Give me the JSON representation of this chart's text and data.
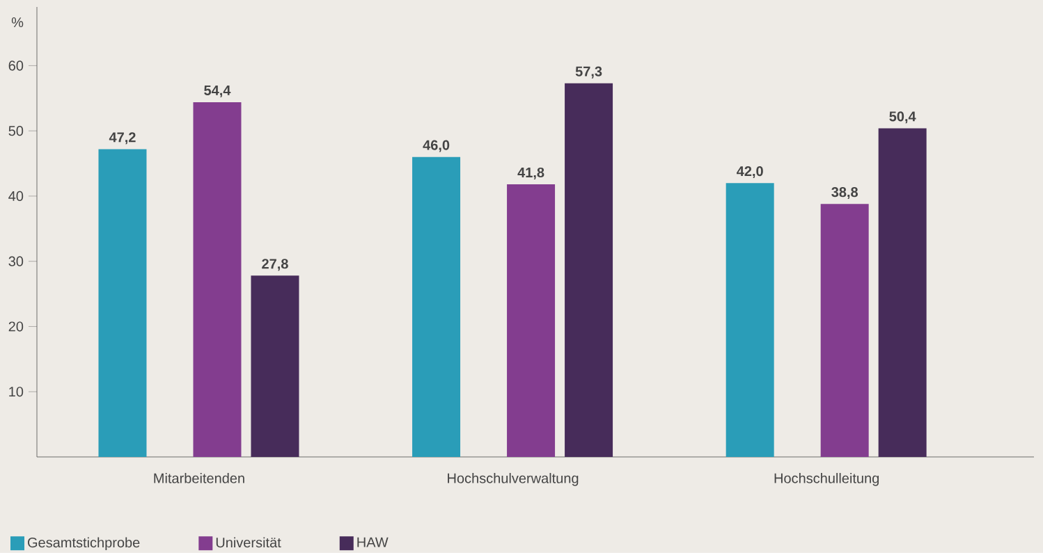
{
  "chart_data": {
    "type": "bar",
    "ylabel": "%",
    "categories": [
      "Mitarbeitenden",
      "Hochschulverwaltung",
      "Hochschulleitung"
    ],
    "series": [
      {
        "name": "Gesamtstichprobe",
        "color": "#2a9db8",
        "values": [
          47.2,
          46.0,
          42.0
        ],
        "value_labels": [
          "47,2",
          "46,0",
          "42,0"
        ]
      },
      {
        "name": "Universität",
        "color": "#833d8f",
        "values": [
          54.4,
          41.8,
          38.8
        ],
        "value_labels": [
          "54,4",
          "41,8",
          "38,8"
        ]
      },
      {
        "name": "HAW",
        "color": "#472c5a",
        "values": [
          27.8,
          57.3,
          50.4
        ],
        "value_labels": [
          "27,8",
          "57,3",
          "50,4"
        ]
      }
    ],
    "ylim": [
      0,
      69
    ],
    "yticks": [
      10,
      20,
      30,
      40,
      50,
      60
    ],
    "grid": false,
    "legend": "bottom left"
  }
}
